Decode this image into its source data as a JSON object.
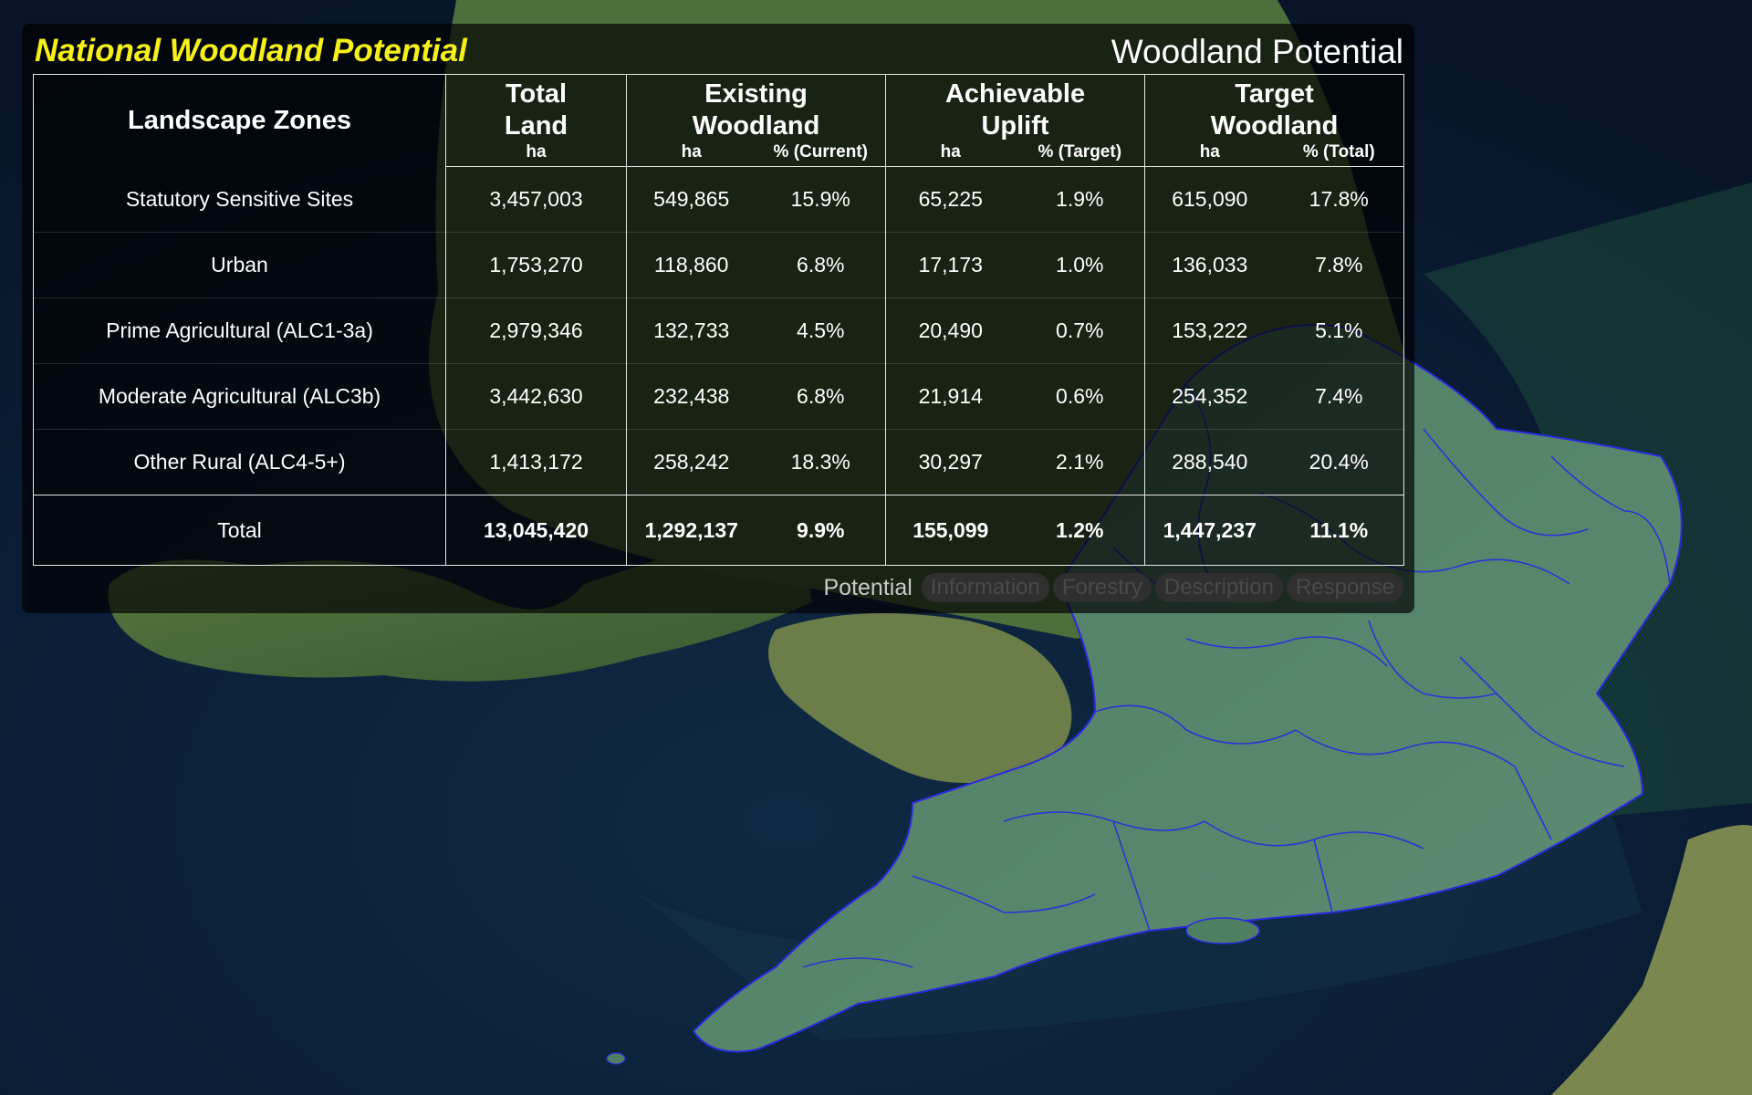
{
  "panel": {
    "title": "National Woodland Potential",
    "subtitle": "Woodland Potential"
  },
  "table": {
    "zone_header": "Landscape Zones",
    "groups": [
      {
        "line1": "Total",
        "line2": "Land"
      },
      {
        "line1": "Existing",
        "line2": "Woodland"
      },
      {
        "line1": "Achievable",
        "line2": "Uplift"
      },
      {
        "line1": "Target",
        "line2": "Woodland"
      }
    ],
    "units": [
      "ha",
      "ha",
      "% (Current)",
      "ha",
      "% (Target)",
      "ha",
      "% (Total)"
    ],
    "rows": [
      {
        "zone": "Statutory Sensitive Sites",
        "values": [
          "3,457,003",
          "549,865",
          "15.9%",
          "65,225",
          "1.9%",
          "615,090",
          "17.8%"
        ]
      },
      {
        "zone": "Urban",
        "values": [
          "1,753,270",
          "118,860",
          "6.8%",
          "17,173",
          "1.0%",
          "136,033",
          "7.8%"
        ]
      },
      {
        "zone": "Prime Agricultural (ALC1-3a)",
        "values": [
          "2,979,346",
          "132,733",
          "4.5%",
          "20,490",
          "0.7%",
          "153,222",
          "5.1%"
        ]
      },
      {
        "zone": "Moderate Agricultural (ALC3b)",
        "values": [
          "3,442,630",
          "232,438",
          "6.8%",
          "21,914",
          "0.6%",
          "254,352",
          "7.4%"
        ]
      },
      {
        "zone": "Other Rural (ALC4-5+)",
        "values": [
          "1,413,172",
          "258,242",
          "18.3%",
          "30,297",
          "2.1%",
          "288,540",
          "20.4%"
        ]
      }
    ],
    "total": {
      "zone": "Total",
      "values": [
        "13,045,420",
        "1,292,137",
        "9.9%",
        "155,099",
        "1.2%",
        "1,447,237",
        "11.1%"
      ]
    }
  },
  "tabs": {
    "active": "Potential",
    "items": [
      "Information",
      "Forestry",
      "Description",
      "Response"
    ]
  },
  "colors": {
    "title": "#f5ef1a",
    "sea": "#0b1a33",
    "land": "#3f6a34",
    "region_fill": "#2f6e5a",
    "region_outline": "#2a2ae0"
  }
}
